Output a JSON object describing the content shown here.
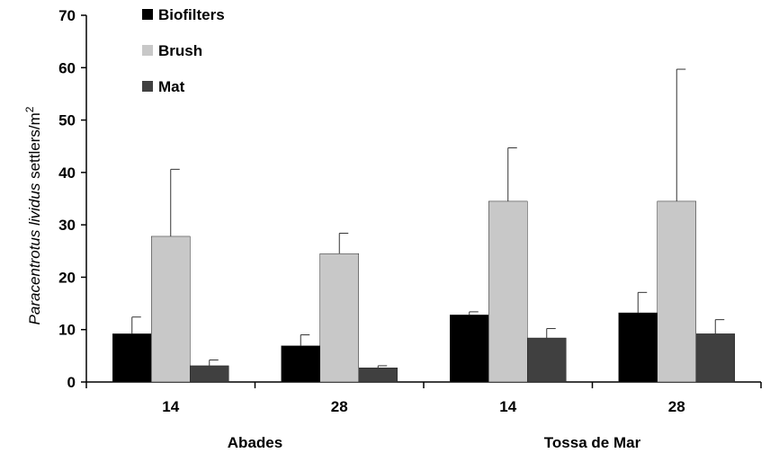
{
  "chart_data": {
    "type": "bar",
    "title": "",
    "ylabel": {
      "italic": "Paracentrotus lividus",
      "rest": " settlers/m",
      "superscript": "2"
    },
    "ylim": [
      0,
      70
    ],
    "yticks": [
      0,
      10,
      20,
      30,
      40,
      50,
      60,
      70
    ],
    "categories": [
      "14",
      "28",
      "14",
      "28"
    ],
    "groups": [
      {
        "label": "Abades",
        "categories": [
          0,
          1
        ]
      },
      {
        "label": "Tossa de Mar",
        "categories": [
          2,
          3
        ]
      }
    ],
    "legend_position": "top-left",
    "series": [
      {
        "name": "Biofilters",
        "color": "#000000",
        "values": [
          9.2,
          6.9,
          12.8,
          13.2
        ],
        "errors": [
          3.2,
          2.1,
          0.6,
          3.9
        ]
      },
      {
        "name": "Brush",
        "color": "#c8c8c8",
        "values": [
          27.8,
          24.5,
          34.5,
          34.5
        ],
        "errors": [
          12.8,
          3.9,
          10.2,
          25.2
        ]
      },
      {
        "name": "Mat",
        "color": "#404040",
        "values": [
          3.1,
          2.7,
          8.4,
          9.2
        ],
        "errors": [
          1.1,
          0.4,
          1.8,
          2.7
        ]
      }
    ]
  }
}
